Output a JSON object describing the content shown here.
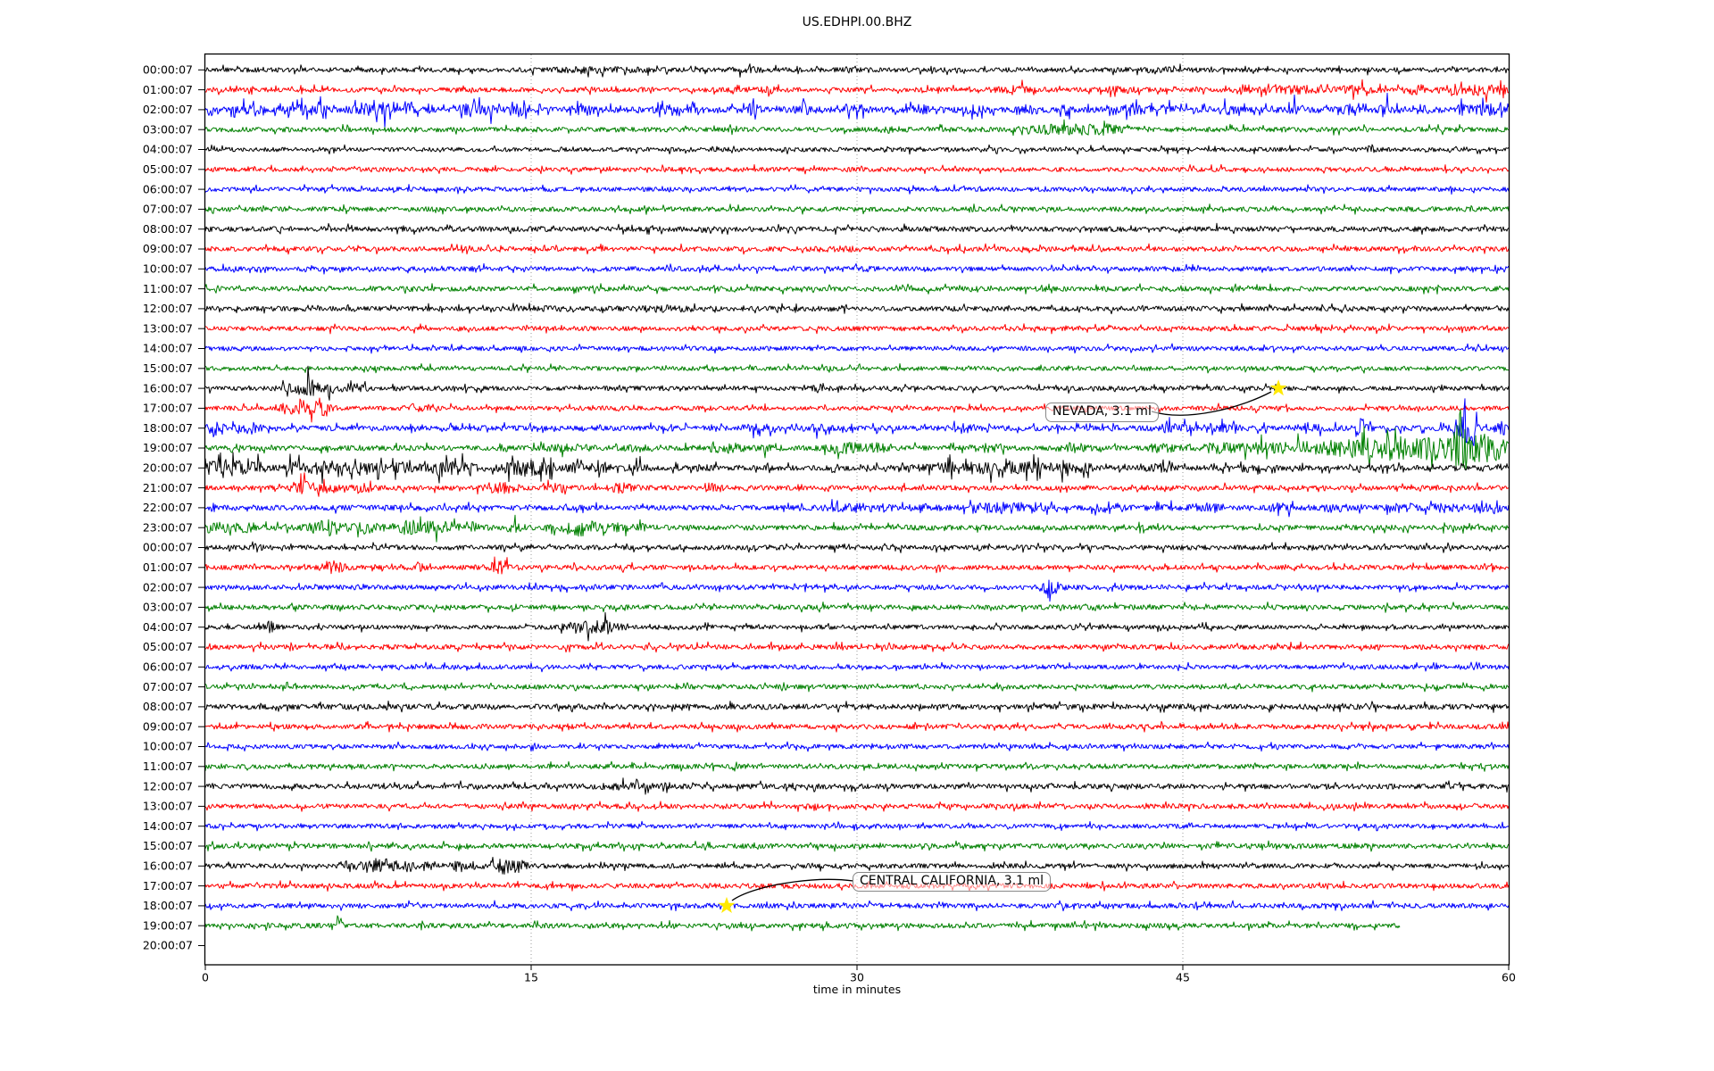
{
  "figure": {
    "title": "US.EDHPI.00.BHZ",
    "xlabel": "time in minutes"
  },
  "chart_data": {
    "type": "line",
    "subtype": "helicorder_dayplot",
    "station_id": "US.EDHPI.00.BHZ",
    "title": "US.EDHPI.00.BHZ",
    "xlabel": "time in minutes",
    "x_axis": {
      "range_minutes": [
        0,
        60
      ],
      "ticks": [
        0,
        15,
        30,
        45,
        60
      ],
      "gridlines_at_minutes": [
        15,
        30,
        45
      ],
      "grid_style": "dotted"
    },
    "trace_color_cycle": [
      "#000000",
      "#ff0000",
      "#0000ff",
      "#008000"
    ],
    "marked_events": [
      {
        "label": "NEVADA, 3.1 ml",
        "row_index": 16,
        "row_label": "16:00:07",
        "minute": 49.4,
        "marker": "star",
        "marker_color": "#ffe900"
      },
      {
        "label": "CENTRAL CALIFORNIA, 3.1 ml",
        "row_index": 42,
        "row_label": "18:00:07",
        "minute": 24.0,
        "marker": "star",
        "marker_color": "#ffe900"
      }
    ],
    "rows": [
      {
        "label": "00:00:07",
        "color": "#000000",
        "base": 2.6,
        "events": [
          [
            18,
            2,
            1.5
          ],
          [
            25,
            0.8,
            1.5
          ],
          [
            44,
            1.2,
            1
          ]
        ]
      },
      {
        "label": "01:00:07",
        "color": "#ff0000",
        "base": 2.6,
        "spiky": 0.12,
        "events": [
          [
            26,
            0.5,
            2.5
          ],
          [
            37.5,
            1,
            2.5
          ],
          [
            42,
            1,
            1.5
          ],
          [
            47.7,
            0.3,
            4
          ],
          [
            50,
            1.5,
            2.5
          ],
          [
            53,
            0.8,
            3
          ],
          [
            55.8,
            0.5,
            4
          ],
          [
            57.5,
            0.4,
            5
          ],
          [
            58.8,
            0.6,
            5
          ],
          [
            59.7,
            0.3,
            4
          ]
        ]
      },
      {
        "label": "02:00:07",
        "color": "#0000ff",
        "base": 3.2,
        "spiky": 0.22,
        "events": [
          [
            2,
            0.6,
            3
          ],
          [
            4.3,
            0.5,
            3
          ],
          [
            5.3,
            0.3,
            4
          ],
          [
            7.5,
            0.8,
            4
          ],
          [
            8.3,
            0.3,
            5
          ],
          [
            9.4,
            0.4,
            4
          ],
          [
            12.1,
            0.5,
            4
          ],
          [
            13,
            0.4,
            5
          ],
          [
            14.6,
            0.4,
            4
          ],
          [
            17.4,
            0.5,
            4
          ],
          [
            21,
            0.4,
            3
          ],
          [
            22.5,
            0.4,
            5
          ],
          [
            25.2,
            0.3,
            4
          ],
          [
            27.5,
            0.5,
            3
          ],
          [
            30,
            0.5,
            3
          ],
          [
            33,
            0.5,
            3
          ],
          [
            35.5,
            0.6,
            3
          ],
          [
            38,
            0.4,
            3
          ],
          [
            39.7,
            0.3,
            4
          ],
          [
            42.7,
            0.5,
            5
          ],
          [
            44.3,
            0.3,
            4
          ],
          [
            47,
            0.5,
            3
          ],
          [
            50.2,
            0.3,
            6
          ],
          [
            52.6,
            0.3,
            4
          ],
          [
            54.3,
            0.3,
            7
          ],
          [
            56,
            0.5,
            4
          ],
          [
            57.8,
            0.5,
            4
          ],
          [
            59,
            0.5,
            5
          ]
        ]
      },
      {
        "label": "03:00:07",
        "color": "#008000",
        "base": 2.8,
        "events": [
          [
            31.5,
            0.4,
            2
          ],
          [
            39.5,
            1.6,
            4
          ],
          [
            41.5,
            0.8,
            3
          ]
        ]
      },
      {
        "label": "04:00:07",
        "color": "#000000",
        "base": 2.4,
        "events": [
          [
            53.7,
            0.2,
            4
          ]
        ]
      },
      {
        "label": "05:00:07",
        "color": "#ff0000",
        "base": 2.5,
        "events": []
      },
      {
        "label": "06:00:07",
        "color": "#0000ff",
        "base": 2.5,
        "events": []
      },
      {
        "label": "07:00:07",
        "color": "#008000",
        "base": 2.7,
        "events": []
      },
      {
        "label": "08:00:07",
        "color": "#000000",
        "base": 2.9,
        "events": []
      },
      {
        "label": "09:00:07",
        "color": "#ff0000",
        "base": 2.7,
        "events": [
          [
            29,
            1,
            1
          ]
        ]
      },
      {
        "label": "10:00:07",
        "color": "#0000ff",
        "base": 2.6,
        "events": [
          [
            12.5,
            0.5,
            1.5
          ],
          [
            30,
            1,
            1
          ]
        ]
      },
      {
        "label": "11:00:07",
        "color": "#008000",
        "base": 2.7,
        "events": []
      },
      {
        "label": "12:00:07",
        "color": "#000000",
        "base": 2.8,
        "events": [
          [
            16,
            1,
            1
          ],
          [
            21,
            1.5,
            1.5
          ]
        ]
      },
      {
        "label": "13:00:07",
        "color": "#ff0000",
        "base": 2.6,
        "events": []
      },
      {
        "label": "14:00:07",
        "color": "#0000ff",
        "base": 2.5,
        "events": []
      },
      {
        "label": "15:00:07",
        "color": "#008000",
        "base": 2.5,
        "events": []
      },
      {
        "label": "16:00:07",
        "color": "#000000",
        "base": 2.5,
        "events": [
          [
            4.2,
            0.6,
            5
          ],
          [
            4.8,
            0.3,
            7
          ],
          [
            5.8,
            0.5,
            4
          ],
          [
            7,
            0.4,
            3
          ],
          [
            28.3,
            0.3,
            4
          ]
        ]
      },
      {
        "label": "17:00:07",
        "color": "#ff0000",
        "base": 2.5,
        "events": [
          [
            3.9,
            0.4,
            6
          ],
          [
            4.6,
            0.3,
            5
          ],
          [
            5.3,
            0.5,
            6
          ],
          [
            9.6,
            0.4,
            3
          ]
        ]
      },
      {
        "label": "18:00:07",
        "color": "#0000ff",
        "base": 2.9,
        "spiky": 0.15,
        "events": [
          [
            0.4,
            0.5,
            5
          ],
          [
            2.1,
            0.6,
            4
          ],
          [
            25.5,
            0.8,
            2.5
          ],
          [
            28,
            0.6,
            2.5
          ],
          [
            35,
            0.6,
            2.5
          ],
          [
            44.6,
            0.8,
            3
          ],
          [
            47,
            0.6,
            2.5
          ],
          [
            50.9,
            0.7,
            4
          ],
          [
            53.3,
            0.25,
            9
          ],
          [
            57.8,
            0.4,
            14
          ],
          [
            58.3,
            0.3,
            10
          ],
          [
            59.7,
            0.2,
            7
          ]
        ]
      },
      {
        "label": "19:00:07",
        "color": "#008000",
        "base": 2.9,
        "events": [
          [
            13.6,
            0.3,
            3
          ],
          [
            16.8,
            1,
            2.5
          ],
          [
            20,
            0.6,
            2
          ],
          [
            24,
            0.9,
            3.5
          ],
          [
            26,
            0.5,
            2.5
          ],
          [
            29.6,
            0.9,
            4
          ],
          [
            31,
            0.5,
            3
          ],
          [
            36,
            0.6,
            2.5
          ],
          [
            40,
            0.7,
            3
          ],
          [
            44,
            0.7,
            3
          ],
          [
            46.5,
            1,
            3.5
          ],
          [
            48.5,
            1,
            4
          ],
          [
            50.5,
            1,
            5
          ],
          [
            52.5,
            1.2,
            7
          ],
          [
            54.2,
            1,
            9
          ],
          [
            55.5,
            1,
            8
          ],
          [
            56.8,
            0.8,
            9
          ],
          [
            57.7,
            0.25,
            40
          ],
          [
            58.4,
            0.5,
            14
          ],
          [
            59.3,
            0.6,
            14
          ]
        ]
      },
      {
        "label": "20:00:07",
        "color": "#000000",
        "base": 2.9,
        "spiky": 0.2,
        "events": [
          [
            0.6,
            0.8,
            6
          ],
          [
            1.5,
            0.6,
            5
          ],
          [
            2.5,
            0.5,
            4
          ],
          [
            4,
            0.5,
            5
          ],
          [
            5.2,
            0.6,
            6
          ],
          [
            6.5,
            0.5,
            4
          ],
          [
            7.6,
            0.6,
            5
          ],
          [
            9,
            0.5,
            4
          ],
          [
            10.8,
            0.8,
            6
          ],
          [
            12,
            0.5,
            4
          ],
          [
            14.6,
            0.9,
            7
          ],
          [
            15.6,
            0.4,
            5
          ],
          [
            17,
            0.5,
            4
          ],
          [
            18.4,
            0.4,
            4
          ],
          [
            20,
            0.4,
            3
          ],
          [
            23,
            0.4,
            3
          ],
          [
            34.5,
            1.5,
            4
          ],
          [
            36.5,
            1,
            4
          ],
          [
            38,
            0.8,
            4
          ],
          [
            39.4,
            0.2,
            9
          ],
          [
            40.5,
            0.5,
            3
          ],
          [
            44,
            0.6,
            3
          ],
          [
            48,
            0.5,
            2.5
          ]
        ]
      },
      {
        "label": "21:00:07",
        "color": "#ff0000",
        "base": 2.7,
        "events": [
          [
            4.5,
            0.6,
            6
          ],
          [
            5.7,
            0.3,
            5
          ],
          [
            7.3,
            0.5,
            4
          ],
          [
            13.6,
            0.8,
            5
          ],
          [
            16.3,
            0.5,
            4
          ],
          [
            19.2,
            0.5,
            4
          ],
          [
            23.3,
            0.4,
            4
          ]
        ]
      },
      {
        "label": "22:00:07",
        "color": "#0000ff",
        "base": 2.9,
        "events": [
          [
            30,
            1.5,
            2.5
          ],
          [
            33,
            0.8,
            2
          ],
          [
            36.5,
            1.2,
            4
          ],
          [
            38,
            0.6,
            4
          ],
          [
            41.7,
            0.7,
            4
          ],
          [
            44,
            0.5,
            2.5
          ],
          [
            46,
            0.6,
            3
          ],
          [
            49.5,
            0.6,
            3
          ],
          [
            52,
            0.6,
            3
          ],
          [
            55,
            0.8,
            3.5
          ],
          [
            57,
            0.5,
            3
          ],
          [
            58.7,
            0.25,
            7
          ],
          [
            59.4,
            0.2,
            6
          ]
        ]
      },
      {
        "label": "23:00:07",
        "color": "#008000",
        "base": 2.9,
        "events": [
          [
            0.6,
            0.7,
            5
          ],
          [
            2,
            0.5,
            4
          ],
          [
            5.6,
            0.8,
            7
          ],
          [
            7.4,
            0.5,
            5
          ],
          [
            9.6,
            1,
            6
          ],
          [
            11,
            0.5,
            4
          ],
          [
            12.2,
            0.5,
            4
          ],
          [
            14.3,
            0.3,
            5
          ],
          [
            17.2,
            0.9,
            7
          ],
          [
            18.8,
            0.5,
            4
          ],
          [
            20,
            0.4,
            3
          ]
        ]
      },
      {
        "label": "00:00:07",
        "color": "#000000",
        "base": 2.7,
        "events": [
          [
            2.3,
            0.25,
            5
          ]
        ]
      },
      {
        "label": "01:00:07",
        "color": "#ff0000",
        "base": 2.7,
        "events": [
          [
            6,
            0.4,
            6
          ],
          [
            9.7,
            0.3,
            4
          ],
          [
            13.6,
            0.6,
            5
          ]
        ]
      },
      {
        "label": "02:00:07",
        "color": "#0000ff",
        "base": 2.7,
        "events": [
          [
            38.9,
            0.4,
            7
          ]
        ]
      },
      {
        "label": "03:00:07",
        "color": "#008000",
        "base": 2.7,
        "events": []
      },
      {
        "label": "04:00:07",
        "color": "#000000",
        "base": 2.5,
        "events": [
          [
            3,
            0.3,
            5
          ],
          [
            17.3,
            0.8,
            5
          ],
          [
            18.5,
            0.6,
            5
          ]
        ]
      },
      {
        "label": "05:00:07",
        "color": "#ff0000",
        "base": 2.7,
        "events": []
      },
      {
        "label": "06:00:07",
        "color": "#0000ff",
        "base": 2.5,
        "events": []
      },
      {
        "label": "07:00:07",
        "color": "#008000",
        "base": 2.6,
        "events": []
      },
      {
        "label": "08:00:07",
        "color": "#000000",
        "base": 3.0,
        "events": []
      },
      {
        "label": "09:00:07",
        "color": "#ff0000",
        "base": 2.7,
        "events": []
      },
      {
        "label": "10:00:07",
        "color": "#0000ff",
        "base": 2.5,
        "events": []
      },
      {
        "label": "11:00:07",
        "color": "#008000",
        "base": 2.6,
        "events": []
      },
      {
        "label": "12:00:07",
        "color": "#000000",
        "base": 2.9,
        "events": [
          [
            19.5,
            1.5,
            1.5
          ]
        ]
      },
      {
        "label": "13:00:07",
        "color": "#ff0000",
        "base": 2.7,
        "events": []
      },
      {
        "label": "14:00:07",
        "color": "#0000ff",
        "base": 2.5,
        "events": []
      },
      {
        "label": "15:00:07",
        "color": "#008000",
        "base": 2.7,
        "events": []
      },
      {
        "label": "16:00:07",
        "color": "#000000",
        "base": 2.7,
        "events": [
          [
            6.6,
            0.4,
            5
          ],
          [
            8.1,
            0.7,
            7
          ],
          [
            9.3,
            0.4,
            4
          ],
          [
            10.3,
            0.4,
            4
          ],
          [
            11.9,
            0.6,
            5
          ],
          [
            13.8,
            0.5,
            7
          ],
          [
            14.5,
            0.3,
            4
          ]
        ]
      },
      {
        "label": "17:00:07",
        "color": "#ff0000",
        "base": 2.7,
        "events": []
      },
      {
        "label": "18:00:07",
        "color": "#0000ff",
        "base": 2.7,
        "events": []
      },
      {
        "label": "19:00:07",
        "color": "#008000",
        "base": 2.7,
        "end": 55,
        "events": [
          [
            6.2,
            0.15,
            2,
            -7
          ]
        ]
      },
      {
        "label": "20:00:07",
        "color": "#000000",
        "base": 0,
        "end": 0,
        "events": []
      }
    ]
  },
  "colors": {
    "grid": "#999999",
    "spine": "#000000",
    "annotation_border": "#888888",
    "star_fill": "#ffe900",
    "connector": "#000000"
  }
}
